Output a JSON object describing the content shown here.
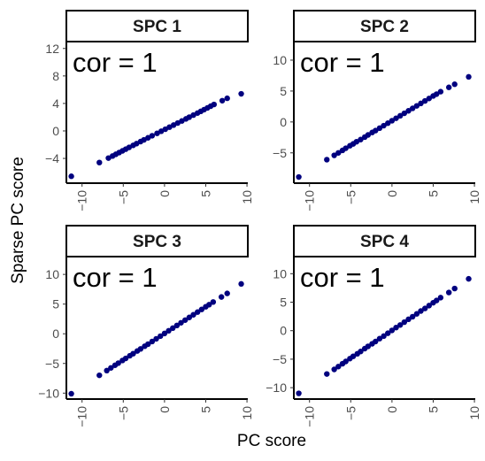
{
  "colors": {
    "point": "#00007f",
    "frame": "#000000",
    "strip_fill": "#ffffff",
    "tick_text": "#4d4d4d"
  },
  "axis_titles": {
    "x": "PC score",
    "y": "Sparse PC score"
  },
  "chart_data": [
    {
      "type": "scatter",
      "panel_title": "SPC 1",
      "annotation": "cor  = 1",
      "xlim": [
        -11.9,
        10.1
      ],
      "ylim": [
        -7.6,
        13.0
      ],
      "xticks": [
        -10,
        -5,
        0,
        5,
        10
      ],
      "yticks": [
        -4,
        0,
        4,
        8,
        12
      ],
      "points": [
        [
          -11.3,
          -6.6
        ],
        [
          -7.9,
          -4.6
        ],
        [
          -6.8,
          -3.95
        ],
        [
          -6.3,
          -3.65
        ],
        [
          -5.9,
          -3.4
        ],
        [
          -5.5,
          -3.15
        ],
        [
          -5.1,
          -2.9
        ],
        [
          -4.7,
          -2.65
        ],
        [
          -4.3,
          -2.4
        ],
        [
          -3.8,
          -2.1
        ],
        [
          -3.4,
          -1.85
        ],
        [
          -2.9,
          -1.55
        ],
        [
          -2.5,
          -1.3
        ],
        [
          -2.0,
          -1.0
        ],
        [
          -1.5,
          -0.7
        ],
        [
          -0.9,
          -0.35
        ],
        [
          -0.4,
          -0.05
        ],
        [
          0.1,
          0.25
        ],
        [
          0.6,
          0.55
        ],
        [
          1.1,
          0.85
        ],
        [
          1.6,
          1.15
        ],
        [
          2.1,
          1.45
        ],
        [
          2.6,
          1.75
        ],
        [
          3.0,
          2.0
        ],
        [
          3.5,
          2.3
        ],
        [
          4.0,
          2.6
        ],
        [
          4.4,
          2.85
        ],
        [
          4.8,
          3.1
        ],
        [
          5.2,
          3.35
        ],
        [
          5.6,
          3.6
        ],
        [
          6.0,
          3.85
        ],
        [
          7.0,
          4.4
        ],
        [
          7.6,
          4.75
        ],
        [
          9.3,
          5.4
        ]
      ]
    },
    {
      "type": "scatter",
      "panel_title": "SPC 2",
      "annotation": "cor  = 1",
      "xlim": [
        -11.9,
        10.1
      ],
      "ylim": [
        -9.9,
        13.0
      ],
      "xticks": [
        -10,
        -5,
        0,
        5,
        10
      ],
      "yticks": [
        -5,
        0,
        5,
        10
      ],
      "points": [
        [
          -11.3,
          -8.9
        ],
        [
          -7.9,
          -6.1
        ],
        [
          -7.0,
          -5.4
        ],
        [
          -6.5,
          -5.0
        ],
        [
          -6.0,
          -4.6
        ],
        [
          -5.6,
          -4.25
        ],
        [
          -5.1,
          -3.85
        ],
        [
          -4.7,
          -3.55
        ],
        [
          -4.3,
          -3.2
        ],
        [
          -3.8,
          -2.85
        ],
        [
          -3.3,
          -2.45
        ],
        [
          -2.9,
          -2.1
        ],
        [
          -2.4,
          -1.7
        ],
        [
          -2.0,
          -1.4
        ],
        [
          -1.5,
          -1.0
        ],
        [
          -1.0,
          -0.6
        ],
        [
          -0.5,
          -0.2
        ],
        [
          0.0,
          0.2
        ],
        [
          0.5,
          0.6
        ],
        [
          1.0,
          1.0
        ],
        [
          1.5,
          1.4
        ],
        [
          2.0,
          1.8
        ],
        [
          2.5,
          2.2
        ],
        [
          3.0,
          2.6
        ],
        [
          3.5,
          3.0
        ],
        [
          4.0,
          3.4
        ],
        [
          4.5,
          3.8
        ],
        [
          5.0,
          4.2
        ],
        [
          5.4,
          4.5
        ],
        [
          5.9,
          4.9
        ],
        [
          6.9,
          5.6
        ],
        [
          7.6,
          6.1
        ],
        [
          9.3,
          7.3
        ]
      ]
    },
    {
      "type": "scatter",
      "panel_title": "SPC 3",
      "annotation": "cor  = 1",
      "xlim": [
        -11.9,
        10.1
      ],
      "ylim": [
        -11.0,
        13.0
      ],
      "xticks": [
        -10,
        -5,
        0,
        5,
        10
      ],
      "yticks": [
        -10,
        -5,
        0,
        5,
        10
      ],
      "points": [
        [
          -11.3,
          -10.1
        ],
        [
          -7.9,
          -7.0
        ],
        [
          -7.0,
          -6.2
        ],
        [
          -6.5,
          -5.75
        ],
        [
          -6.0,
          -5.3
        ],
        [
          -5.6,
          -4.95
        ],
        [
          -5.1,
          -4.5
        ],
        [
          -4.7,
          -4.15
        ],
        [
          -4.2,
          -3.7
        ],
        [
          -3.8,
          -3.35
        ],
        [
          -3.3,
          -2.9
        ],
        [
          -2.9,
          -2.55
        ],
        [
          -2.4,
          -2.1
        ],
        [
          -2.0,
          -1.75
        ],
        [
          -1.5,
          -1.3
        ],
        [
          -1.0,
          -0.85
        ],
        [
          -0.5,
          -0.4
        ],
        [
          0.0,
          0.05
        ],
        [
          0.5,
          0.5
        ],
        [
          1.0,
          0.95
        ],
        [
          1.5,
          1.4
        ],
        [
          2.0,
          1.85
        ],
        [
          2.5,
          2.3
        ],
        [
          3.0,
          2.75
        ],
        [
          3.5,
          3.2
        ],
        [
          4.0,
          3.65
        ],
        [
          4.5,
          4.1
        ],
        [
          5.0,
          4.55
        ],
        [
          5.4,
          4.9
        ],
        [
          5.9,
          5.35
        ],
        [
          6.9,
          6.2
        ],
        [
          7.6,
          6.8
        ],
        [
          9.3,
          8.4
        ]
      ]
    },
    {
      "type": "scatter",
      "panel_title": "SPC 4",
      "annotation": "cor  = 1",
      "xlim": [
        -11.9,
        10.1
      ],
      "ylim": [
        -12.0,
        13.0
      ],
      "xticks": [
        -10,
        -5,
        0,
        5,
        10
      ],
      "yticks": [
        -10,
        -5,
        0,
        5,
        10
      ],
      "points": [
        [
          -11.3,
          -11.0
        ],
        [
          -7.9,
          -7.6
        ],
        [
          -7.0,
          -6.8
        ],
        [
          -6.5,
          -6.3
        ],
        [
          -6.0,
          -5.8
        ],
        [
          -5.6,
          -5.4
        ],
        [
          -5.1,
          -4.9
        ],
        [
          -4.7,
          -4.5
        ],
        [
          -4.2,
          -4.05
        ],
        [
          -3.8,
          -3.65
        ],
        [
          -3.3,
          -3.15
        ],
        [
          -2.9,
          -2.75
        ],
        [
          -2.4,
          -2.3
        ],
        [
          -2.0,
          -1.9
        ],
        [
          -1.5,
          -1.4
        ],
        [
          -1.0,
          -0.95
        ],
        [
          -0.5,
          -0.45
        ],
        [
          0.0,
          0.05
        ],
        [
          0.5,
          0.55
        ],
        [
          1.0,
          1.0
        ],
        [
          1.5,
          1.5
        ],
        [
          2.0,
          2.0
        ],
        [
          2.5,
          2.45
        ],
        [
          3.0,
          2.95
        ],
        [
          3.5,
          3.45
        ],
        [
          4.0,
          3.9
        ],
        [
          4.5,
          4.4
        ],
        [
          5.0,
          4.9
        ],
        [
          5.4,
          5.3
        ],
        [
          5.9,
          5.8
        ],
        [
          6.9,
          6.7
        ],
        [
          7.6,
          7.4
        ],
        [
          9.3,
          9.1
        ]
      ]
    }
  ]
}
